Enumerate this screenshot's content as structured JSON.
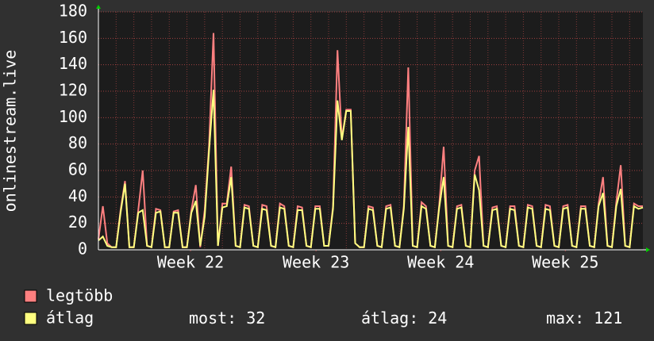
{
  "chart_data": {
    "type": "line",
    "y_label": "onlinestream.live",
    "x": [
      0,
      0.25,
      0.5,
      0.75,
      1,
      1.25,
      1.5,
      1.75,
      2,
      2.25,
      2.5,
      2.75,
      3,
      3.25,
      3.5,
      3.75,
      4,
      4.25,
      4.5,
      4.75,
      5,
      5.25,
      5.5,
      5.75,
      6,
      6.25,
      6.5,
      6.75,
      7,
      7.25,
      7.5,
      7.75,
      8,
      8.25,
      8.5,
      8.75,
      9,
      9.25,
      9.5,
      9.75,
      10,
      10.25,
      10.5,
      10.75,
      11,
      11.25,
      11.5,
      11.75,
      12,
      12.25,
      12.5,
      12.75,
      13,
      13.25,
      13.5,
      13.75,
      14,
      14.25,
      14.5,
      14.75,
      15,
      15.25,
      15.5,
      15.75,
      16,
      16.25,
      16.5,
      16.75,
      17,
      17.25,
      17.5,
      17.75,
      18,
      18.25,
      18.5,
      18.75,
      19,
      19.25,
      19.5,
      19.75,
      20,
      20.25,
      20.5,
      20.75,
      21,
      21.25,
      21.5,
      21.75,
      22,
      22.25,
      22.5,
      22.75,
      23,
      23.25,
      23.5,
      23.75,
      24,
      24.25,
      24.5,
      24.75,
      25,
      25.25,
      25.5,
      25.75,
      26,
      26.25,
      26.5,
      26.75,
      27,
      27.25,
      27.5,
      27.75,
      28,
      28.25,
      28.5,
      28.75,
      29,
      29.25,
      29.5,
      29.75,
      30,
      30.25,
      30.5,
      30.75
    ],
    "series": [
      {
        "name": "legtöbb",
        "color": "#ff8080",
        "values": [
          8,
          33,
          5,
          2,
          2,
          30,
          52,
          2,
          2,
          30,
          60,
          3,
          2,
          31,
          30,
          2,
          2,
          29,
          30,
          2,
          2,
          30,
          49,
          2,
          30,
          79,
          164,
          3,
          35,
          35,
          63,
          3,
          2,
          34,
          33,
          3,
          2,
          34,
          33,
          3,
          2,
          35,
          33,
          3,
          2,
          33,
          32,
          3,
          2,
          33,
          33,
          3,
          3,
          33,
          151,
          84,
          106,
          106,
          5,
          2,
          2,
          33,
          32,
          3,
          2,
          33,
          34,
          3,
          2,
          33,
          138,
          3,
          2,
          36,
          33,
          3,
          2,
          34,
          78,
          3,
          2,
          33,
          34,
          3,
          2,
          60,
          71,
          3,
          2,
          32,
          33,
          3,
          2,
          33,
          33,
          3,
          2,
          34,
          33,
          3,
          2,
          34,
          33,
          3,
          2,
          33,
          34,
          3,
          2,
          33,
          33,
          3,
          2,
          35,
          55,
          3,
          2,
          36,
          64,
          3,
          2,
          35,
          33,
          33
        ]
      },
      {
        "name": "átlag",
        "color": "#ffff80",
        "values": [
          7,
          10,
          3,
          2,
          2,
          28,
          50,
          2,
          2,
          28,
          30,
          3,
          2,
          28,
          29,
          2,
          2,
          28,
          28,
          2,
          2,
          28,
          37,
          3,
          25,
          75,
          121,
          3,
          32,
          33,
          55,
          3,
          2,
          32,
          31,
          3,
          2,
          31,
          30,
          3,
          2,
          32,
          31,
          3,
          2,
          30,
          30,
          3,
          2,
          31,
          31,
          3,
          3,
          31,
          113,
          83,
          105,
          105,
          5,
          2,
          2,
          31,
          30,
          3,
          2,
          31,
          32,
          3,
          2,
          31,
          93,
          3,
          2,
          33,
          31,
          3,
          2,
          32,
          55,
          3,
          2,
          31,
          32,
          3,
          2,
          57,
          45,
          3,
          2,
          30,
          31,
          3,
          2,
          31,
          30,
          3,
          2,
          32,
          31,
          3,
          2,
          31,
          30,
          3,
          2,
          31,
          32,
          3,
          2,
          31,
          31,
          3,
          2,
          33,
          43,
          3,
          2,
          33,
          46,
          3,
          2,
          33,
          31,
          32
        ]
      }
    ],
    "xlim": [
      0,
      30.75
    ],
    "xticks": [
      {
        "value": 5.2,
        "label": "Week 22"
      },
      {
        "value": 12.29,
        "label": "Week 23"
      },
      {
        "value": 19.33,
        "label": "Week 24"
      },
      {
        "value": 26.37,
        "label": "Week 25"
      }
    ],
    "ylim": [
      0,
      180
    ],
    "yticks": [
      0,
      20,
      40,
      60,
      80,
      100,
      120,
      140,
      160,
      180
    ],
    "grid": true,
    "stats": [
      {
        "label": "most:",
        "value": 32
      },
      {
        "label": "átlag:",
        "value": 24
      },
      {
        "label": "max:",
        "value": 121
      }
    ]
  }
}
